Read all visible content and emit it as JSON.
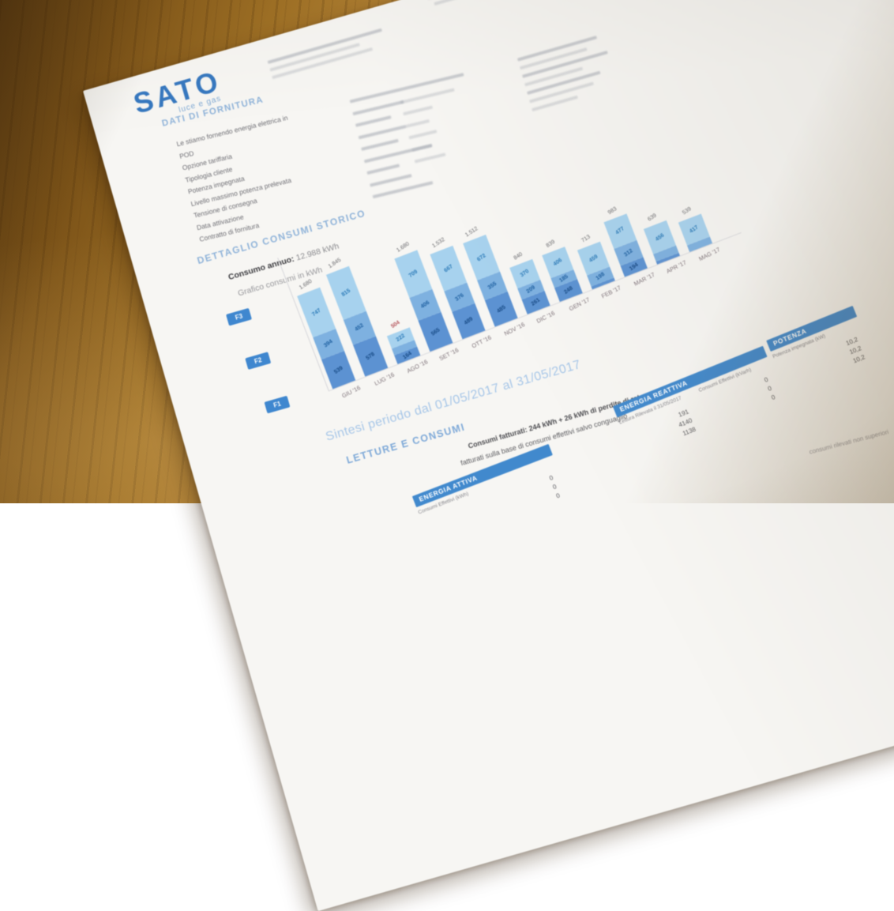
{
  "logo": {
    "name": "SATO",
    "tagline": "luce e gas"
  },
  "supply": {
    "title": "DATI DI FORNITURA",
    "rows": [
      "Le stiamo fornendo energia elettrica in",
      "POD",
      "Opzione tariffaria",
      "Tipologia cliente",
      "Potenza impegnata",
      "Livello massimo potenza prelevata",
      "Tensione di consegna",
      "Data attivazione",
      "Contratto di fornitura"
    ]
  },
  "history": {
    "title": "DETTAGLIO CONSUMI STORICO",
    "annual_label": "Consumo annuo:",
    "annual_value": "12.988 kWh",
    "chart_caption": "Grafico consumi in kWh"
  },
  "chart_data": {
    "type": "bar",
    "stacked": true,
    "title": "Grafico consumi in kWh",
    "ylabel": "kWh",
    "grid": false,
    "legend_position": "left",
    "legend_top_to_bottom": [
      "F3",
      "F2",
      "F1"
    ],
    "categories": [
      "GIU '16",
      "LUG '16",
      "AGO '16",
      "SET '16",
      "OTT '16",
      "NOV '16",
      "DIC '16",
      "GEN '17",
      "FEB '17",
      "MAR '17",
      "APR '17",
      "MAG '17"
    ],
    "series": [
      {
        "name": "F3",
        "color": "#a7d2ee",
        "values": [
          747,
          815,
          222,
          709,
          667,
          672,
          370,
          406,
          459,
          477,
          456,
          417
        ]
      },
      {
        "name": "F2",
        "color": "#7eb1e0",
        "values": [
          394,
          452,
          118,
          406,
          376,
          355,
          209,
          185,
          198,
          312,
          136,
          122
        ]
      },
      {
        "name": "F1",
        "color": "#5c92d2",
        "values": [
          539,
          578,
          164,
          565,
          489,
          485,
          261,
          248,
          56,
          194,
          47,
          0
        ]
      }
    ],
    "totals": [
      "1.680",
      "1.845",
      "504",
      "1.680",
      "1.532",
      "1.512",
      "840",
      "839",
      "713",
      "983",
      "639",
      "539"
    ],
    "total_highlight_index": 2,
    "total_highlight_color": "#b5565c"
  },
  "summary": {
    "sintesi": "Sintesi periodo dal 01/05/2017 al 31/05/2017",
    "section": "LETTURE E CONSUMI",
    "line1": "Consumi fatturati: 244 kWh + 26 kWh di perdite di rete",
    "line2": "fatturati sulla base di consumi effettivi salvo conguaglio"
  },
  "tables": [
    {
      "title": "ENERGIA ATTIVA",
      "columns": [
        "Consumi Effettivi (kWh)"
      ],
      "rows": [
        [
          "0"
        ],
        [
          "0"
        ],
        [
          "0"
        ]
      ]
    },
    {
      "title": "ENERGIA REATTIVA",
      "columns": [
        "Lettura Rilevata il 31/05/2017",
        "Consumi Effettivi (kVarh)"
      ],
      "rows": [
        [
          "191",
          "0"
        ],
        [
          "4140",
          "0"
        ],
        [
          "1138",
          "0"
        ]
      ]
    },
    {
      "title": "POTENZA",
      "columns": [
        "Potenza impegnata (kW)"
      ],
      "rows": [
        [
          "10,2"
        ],
        [
          "10,2"
        ],
        [
          "10,2"
        ]
      ]
    }
  ],
  "margin_note": "consumi rilevati non superiori",
  "colors": {
    "accent_blue": "#4189cd",
    "header_blue": "#8fb3d9",
    "paper": "#f7f6f3"
  }
}
